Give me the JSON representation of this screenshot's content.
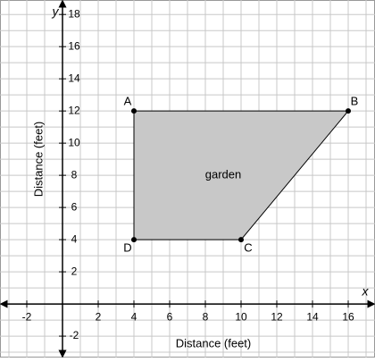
{
  "chart_data": {
    "type": "polygon",
    "x_axis_name": "x",
    "y_axis_name": "y",
    "xlabel": "Distance (feet)",
    "ylabel": "Distance (feet)",
    "region_label": "garden",
    "region_label_x": 9,
    "region_label_y": 8,
    "point_labels": [
      "A",
      "B",
      "C",
      "D"
    ],
    "x": [
      4,
      16,
      10,
      4
    ],
    "y": [
      12,
      12,
      4,
      4
    ],
    "fill": "#c8c8c8",
    "color": "#000000",
    "xlim": [
      -3.5,
      17.5
    ],
    "ylim": [
      -3.33,
      18.9
    ],
    "xticks": [
      -2,
      2,
      4,
      6,
      8,
      10,
      12,
      14,
      16
    ],
    "yticks": [
      -2,
      2,
      4,
      6,
      8,
      10,
      12,
      14,
      16,
      18
    ],
    "grid": true,
    "grid_step": 1
  }
}
